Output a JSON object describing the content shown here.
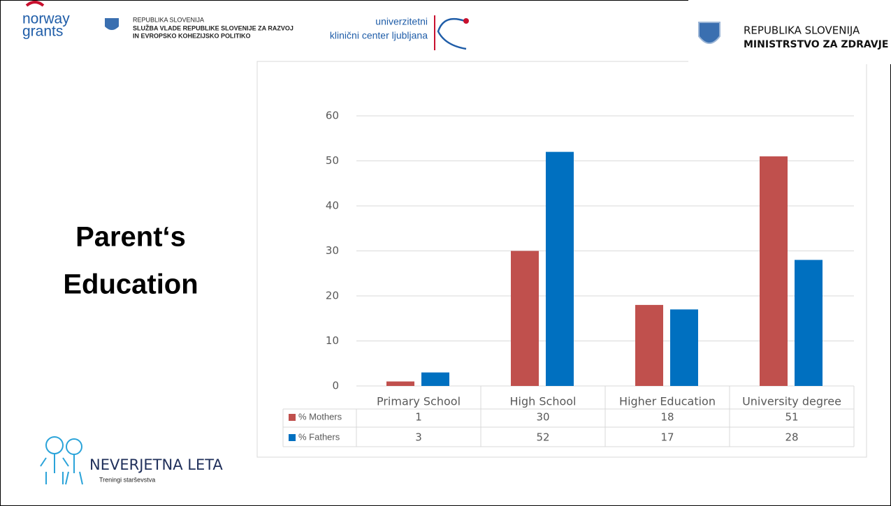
{
  "header": {
    "logo_1": [
      "norway",
      "grants"
    ],
    "logo_2": [
      "REPUBLIKA SLOVENIJA",
      "SLUŽBA VLADE REPUBLIKE SLOVENIJE ZA RAZVOJ",
      "IN EVROPSKO KOHEZIJSKO POLITIKO"
    ],
    "logo_3": [
      "univerzitetni",
      "klinični center ljubljana"
    ],
    "logo_4": [
      "REPUBLIKA SLOVENIJA",
      "MINISTRSTVO ZA ZDRAVJE"
    ]
  },
  "slide_title": [
    "Parent‘s",
    "Education"
  ],
  "footer": {
    "brand": "NEVERJETNA LETA",
    "tagline": "Treningi starševstva"
  },
  "chart_data": {
    "type": "bar",
    "categories": [
      "Primary School",
      "High School",
      "Higher Education",
      "University degree"
    ],
    "series": [
      {
        "name": "% Mothers",
        "color": "#c0504d",
        "values": [
          1,
          30,
          18,
          51
        ]
      },
      {
        "name": "% Fathers",
        "color": "#0070c0",
        "values": [
          3,
          52,
          17,
          28
        ]
      }
    ],
    "ylim": [
      0,
      60
    ],
    "yticks": [
      0,
      10,
      20,
      30,
      40,
      50,
      60
    ],
    "grid": true,
    "data_table": true
  }
}
